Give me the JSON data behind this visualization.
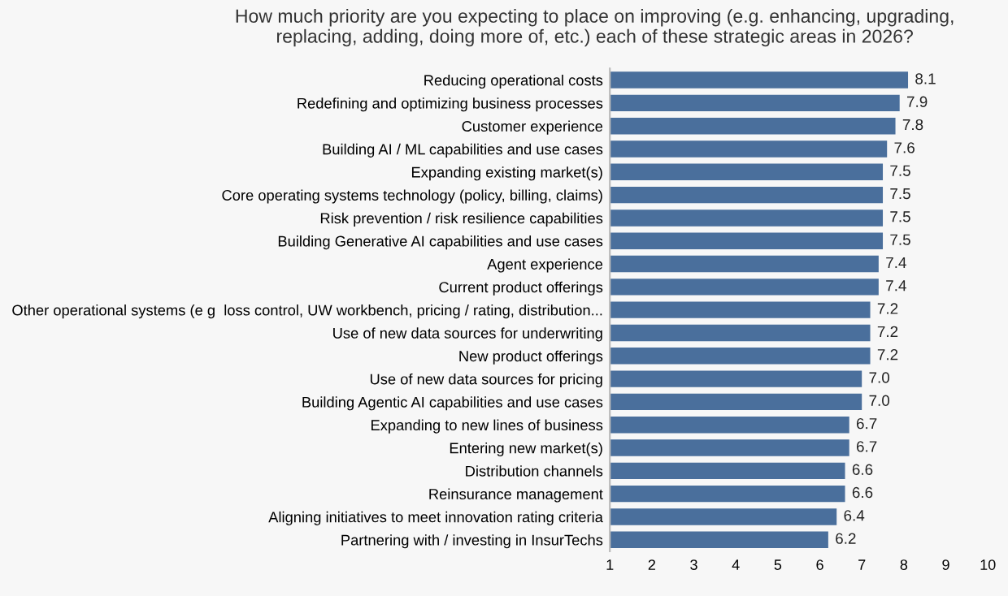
{
  "chart_data": {
    "type": "bar",
    "orientation": "horizontal",
    "title": "How much priority are you expecting to place on improving (e.g. enhancing, upgrading,\nreplacing, adding, doing more of, etc.) each of these strategic areas in 2026?",
    "categories": [
      "Reducing operational costs",
      "Redefining and optimizing business processes",
      "Customer experience",
      "Building AI / ML capabilities and use cases",
      "Expanding existing market(s)",
      "Core operating systems technology (policy, billing, claims)",
      "Risk prevention / risk resilience capabilities",
      "Building Generative AI capabilities and use cases",
      "Agent experience",
      "Current product offerings",
      "Other operational systems (e g  loss control, UW workbench, pricing / rating, distribution...",
      "Use of new data sources for underwriting",
      "New product offerings",
      "Use of new data sources for pricing",
      "Building Agentic AI capabilities and use cases",
      "Expanding to new lines of business",
      "Entering new market(s)",
      "Distribution channels",
      "Reinsurance management",
      "Aligning initiatives to meet innovation rating criteria",
      "Partnering with / investing in InsurTechs"
    ],
    "values": [
      8.1,
      7.9,
      7.8,
      7.6,
      7.5,
      7.5,
      7.5,
      7.5,
      7.4,
      7.4,
      7.2,
      7.2,
      7.2,
      7.0,
      7.0,
      6.7,
      6.7,
      6.6,
      6.6,
      6.4,
      6.2
    ],
    "color": "#4a6f9c",
    "xlim": [
      1,
      10
    ],
    "xticks": [
      1,
      2,
      3,
      4,
      5,
      6,
      7,
      8,
      9,
      10
    ],
    "value_labels": [
      "8.1",
      "7.9",
      "7.8",
      "7.6",
      "7.5",
      "7.5",
      "7.5",
      "7.5",
      "7.4",
      "7.4",
      "7.2",
      "7.2",
      "7.2",
      "7.0",
      "7.0",
      "6.7",
      "6.7",
      "6.6",
      "6.6",
      "6.4",
      "6.2"
    ],
    "grid": false,
    "legend": false
  }
}
